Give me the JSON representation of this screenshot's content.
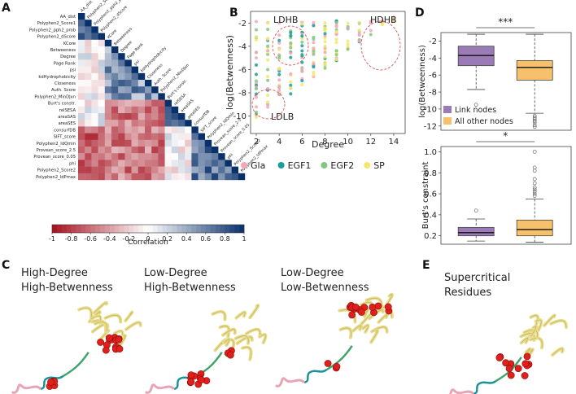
{
  "panels": {
    "a": "A",
    "b": "B",
    "c": "C",
    "d": "D",
    "e": "E"
  },
  "heatmap": {
    "labels": [
      "AA_dist",
      "Polyphen2_Score1",
      "Polyphen2_pph2_prob",
      "Polyphen2_dScore",
      "KCore",
      "Betweeness",
      "Degree",
      "Page Rank",
      "psi",
      "kdHydrophobicity",
      "Closeness",
      "Auth. Score",
      "Polyphen2_MinDJxn",
      "Burt's constr.",
      "relSESA",
      "areaSAS",
      "areaSES",
      "consurfDB",
      "SIFT_score",
      "Polyphen2_IdQmin",
      "Provean_score_2.5",
      "Provean_score_0.05",
      "phi",
      "Polyphen2_Score2",
      "Polyphen2_IdPmax"
    ],
    "colorbar": {
      "ticks": [
        "-1",
        "-0.8",
        "-0.6",
        "-0.4",
        "-0.2",
        "0",
        "0.2",
        "0.4",
        "0.6",
        "0.8",
        "1"
      ],
      "label": "Correlation"
    }
  },
  "chart_data": [
    {
      "type": "scatter",
      "title": "",
      "xlabel": "Degree",
      "ylabel": "log(Betwenness)",
      "xlim": [
        1.5,
        15
      ],
      "ylim": [
        -11.5,
        -1
      ],
      "xticks": [
        "2",
        "4",
        "6",
        "8",
        "10",
        "12",
        "14"
      ],
      "yticks": [
        "-2",
        "-4",
        "-6",
        "-8",
        "-10"
      ],
      "annotations": [
        "LDHB",
        "HDHB",
        "LDLB"
      ],
      "legend": [
        {
          "name": "Gla",
          "color": "#f4a6b8"
        },
        {
          "name": "EGF1",
          "color": "#1a9c9c"
        },
        {
          "name": "EGF2",
          "color": "#7fc97f"
        },
        {
          "name": "SP",
          "color": "#f2e86b"
        }
      ]
    },
    {
      "type": "box",
      "ylabel": "log(Betweenness)",
      "ylim": [
        -12.5,
        -1
      ],
      "yticks": [
        "-2",
        "-4",
        "-6",
        "-8",
        "-10",
        "-12"
      ],
      "significance": "***",
      "series": [
        {
          "name": "Link nodes",
          "color": "#9b7bb5",
          "whisker_low": -7.7,
          "q1": -4.9,
          "median": -3.7,
          "q3": -2.6,
          "whisker_high": -1.2,
          "outliers": [
            -9.5
          ]
        },
        {
          "name": "All other nodes",
          "color": "#f7c06a",
          "whisker_low": -10.5,
          "q1": -6.6,
          "median": -5.1,
          "q3": -4.3,
          "whisker_high": -1.2,
          "outliers": [
            -10.8,
            -11.0,
            -11.2,
            -11.4,
            -11.6,
            -11.9,
            -12.1
          ]
        }
      ]
    },
    {
      "type": "box",
      "ylabel": "Burt's constraint",
      "ylim": [
        0.12,
        1.05
      ],
      "yticks": [
        "0.2",
        "0.4",
        "0.6",
        "0.8",
        "1.0"
      ],
      "significance": "*",
      "series": [
        {
          "name": "Link nodes",
          "color": "#9b7bb5",
          "whisker_low": 0.15,
          "q1": 0.2,
          "median": 0.23,
          "q3": 0.28,
          "whisker_high": 0.36,
          "outliers": [
            0.44
          ]
        },
        {
          "name": "All other nodes",
          "color": "#f7c06a",
          "whisker_low": 0.14,
          "q1": 0.2,
          "median": 0.26,
          "q3": 0.35,
          "whisker_high": 0.55,
          "outliers": [
            0.58,
            0.6,
            0.62,
            0.64,
            0.66,
            0.7,
            0.74,
            0.82,
            0.85,
            1.0
          ]
        }
      ]
    }
  ],
  "structures": {
    "c1": [
      "High-Degree",
      "High-Betwenness"
    ],
    "c2": [
      "Low-Degree",
      "High-Betwenness"
    ],
    "c3": [
      "Low-Degree",
      "Low-Betwenness"
    ],
    "e": [
      "Supercritical",
      "Residues"
    ]
  }
}
